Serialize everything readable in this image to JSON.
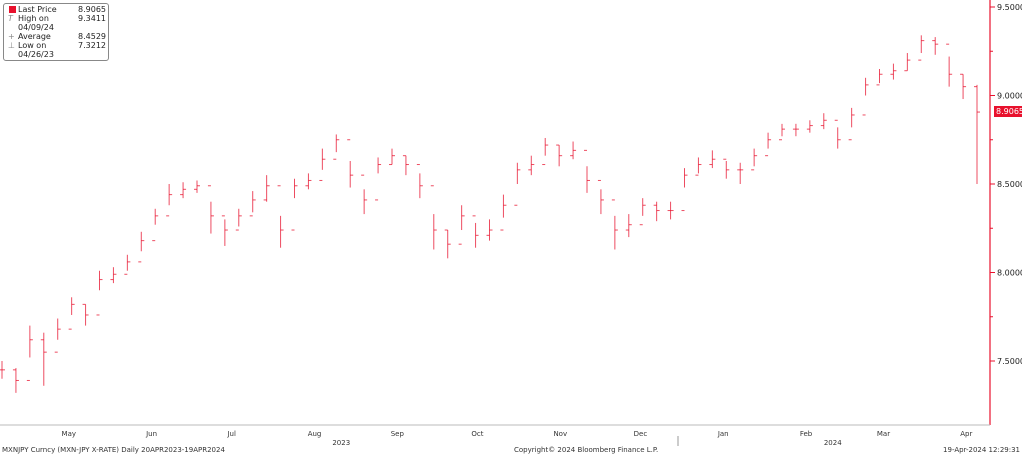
{
  "legend": {
    "last": {
      "label": "Last Price",
      "value": "8.9065"
    },
    "high": {
      "label": "High on 04/09/24",
      "value": "9.3411"
    },
    "avg": {
      "label": "Average",
      "value": "8.4529"
    },
    "low": {
      "label": "Low on 04/26/23",
      "value": "7.3212"
    }
  },
  "footer": {
    "left": "MXNJPY Curncy (MXN-JPY X-RATE)  Daily 20APR2023-19APR2024",
    "center": "Copyright© 2024 Bloomberg Finance L.P.",
    "right": "19-Apr-2024 12:29:31"
  },
  "chart_data": {
    "type": "bar",
    "subtype": "ohlc",
    "color": "#e8112d",
    "start_date": "2023-04-20",
    "end_date": "2024-04-19",
    "ylim": [
      7.1,
      9.54
    ],
    "yticks": [
      "9.5000",
      "9.0000",
      "8.5000",
      "8.0000",
      "7.5000"
    ],
    "ytick_values": [
      9.5,
      9.0,
      8.5,
      8.0,
      7.5
    ],
    "last_price_label": "8.9065",
    "months": [
      {
        "label": "Apr",
        "date": "2023-04-15"
      },
      {
        "label": "May",
        "date": "2023-05-15"
      },
      {
        "label": "Jun",
        "date": "2023-06-15"
      },
      {
        "label": "Jul",
        "date": "2023-07-15"
      },
      {
        "label": "Aug",
        "date": "2023-08-15"
      },
      {
        "label": "Sep",
        "date": "2023-09-15"
      },
      {
        "label": "Oct",
        "date": "2023-10-15"
      },
      {
        "label": "Nov",
        "date": "2023-11-15"
      },
      {
        "label": "Dec",
        "date": "2023-12-15"
      },
      {
        "label": "Jan",
        "date": "2024-01-15"
      },
      {
        "label": "Feb",
        "date": "2024-02-15"
      },
      {
        "label": "Mar",
        "date": "2024-03-15"
      },
      {
        "label": "Apr",
        "date": "2024-04-15"
      }
    ],
    "years": [
      {
        "label": "2023",
        "date": "2023-08-25"
      },
      {
        "label": "2024",
        "date": "2024-02-25"
      }
    ],
    "closes": [
      7.45,
      7.39,
      7.62,
      7.55,
      7.68,
      7.82,
      7.76,
      7.96,
      7.99,
      8.06,
      8.18,
      8.32,
      8.44,
      8.47,
      8.49,
      8.32,
      8.24,
      8.32,
      8.41,
      8.49,
      8.24,
      8.49,
      8.52,
      8.64,
      8.75,
      8.55,
      8.41,
      8.61,
      8.66,
      8.61,
      8.49,
      8.24,
      8.16,
      8.32,
      8.21,
      8.24,
      8.38,
      8.58,
      8.61,
      8.72,
      8.66,
      8.69,
      8.52,
      8.41,
      8.24,
      8.27,
      8.38,
      8.35,
      8.35,
      8.55,
      8.61,
      8.64,
      8.58,
      8.58,
      8.66,
      8.75,
      8.81,
      8.81,
      8.83,
      8.86,
      8.75,
      8.89,
      9.06,
      9.12,
      9.14,
      9.2,
      9.31,
      9.29,
      9.12,
      9.05,
      8.9065
    ],
    "highs": [
      7.5,
      7.46,
      7.7,
      7.66,
      7.74,
      7.86,
      7.82,
      8.01,
      8.03,
      8.1,
      8.23,
      8.36,
      8.5,
      8.51,
      8.52,
      8.4,
      8.3,
      8.36,
      8.46,
      8.55,
      8.32,
      8.53,
      8.56,
      8.7,
      8.78,
      8.63,
      8.47,
      8.65,
      8.7,
      8.66,
      8.56,
      8.33,
      8.24,
      8.38,
      8.28,
      8.3,
      8.44,
      8.62,
      8.66,
      8.76,
      8.72,
      8.74,
      8.6,
      8.47,
      8.32,
      8.33,
      8.42,
      8.4,
      8.4,
      8.59,
      8.65,
      8.69,
      8.63,
      8.62,
      8.7,
      8.79,
      8.84,
      8.84,
      8.86,
      8.9,
      8.82,
      8.93,
      9.1,
      9.15,
      9.18,
      9.24,
      9.34,
      9.33,
      9.22,
      9.12,
      9.06
    ],
    "lows": [
      7.4,
      7.32,
      7.52,
      7.36,
      7.62,
      7.76,
      7.7,
      7.9,
      7.94,
      8.01,
      8.12,
      8.27,
      8.38,
      8.42,
      8.45,
      8.22,
      8.15,
      8.26,
      8.34,
      8.4,
      8.14,
      8.42,
      8.47,
      8.58,
      8.68,
      8.48,
      8.33,
      8.56,
      8.61,
      8.55,
      8.42,
      8.13,
      8.08,
      8.24,
      8.14,
      8.18,
      8.31,
      8.5,
      8.55,
      8.66,
      8.6,
      8.64,
      8.45,
      8.33,
      8.13,
      8.2,
      8.32,
      8.29,
      8.3,
      8.48,
      8.56,
      8.59,
      8.53,
      8.5,
      8.6,
      8.7,
      8.77,
      8.77,
      8.79,
      8.81,
      8.7,
      8.82,
      9.0,
      9.07,
      9.09,
      9.14,
      9.24,
      9.23,
      9.05,
      8.98,
      8.5
    ]
  }
}
